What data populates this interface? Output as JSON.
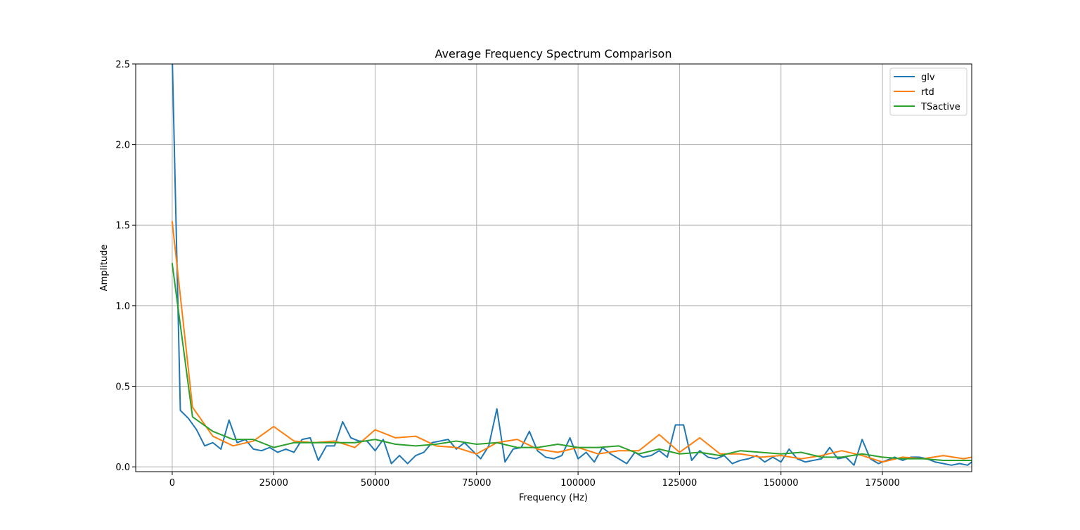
{
  "chart_data": {
    "type": "line",
    "title": "Average Frequency Spectrum Comparison",
    "xlabel": "Frequency (Hz)",
    "ylabel": "Amplitude",
    "xlim": [
      -9000,
      197000
    ],
    "ylim": [
      -0.03,
      2.5
    ],
    "xticks": [
      0,
      25000,
      50000,
      75000,
      100000,
      125000,
      150000,
      175000
    ],
    "yticks": [
      0.0,
      0.5,
      1.0,
      1.5,
      2.0,
      2.5
    ],
    "xtick_labels": [
      "0",
      "25000",
      "50000",
      "75000",
      "100000",
      "125000",
      "150000",
      "175000"
    ],
    "ytick_labels": [
      "0.0",
      "0.5",
      "1.0",
      "1.5",
      "2.0",
      "2.5"
    ],
    "grid": true,
    "legend_position": "top-right",
    "series": [
      {
        "name": "glv",
        "color": "#1f77b4",
        "x": [
          0,
          2000,
          4000,
          6000,
          8000,
          10000,
          12000,
          14000,
          16000,
          18000,
          20000,
          22000,
          24000,
          26000,
          28000,
          30000,
          32000,
          34000,
          36000,
          38000,
          40000,
          42000,
          44000,
          46000,
          48000,
          50000,
          52000,
          54000,
          56000,
          58000,
          60000,
          62000,
          64000,
          66000,
          68000,
          70000,
          72000,
          74000,
          76000,
          78000,
          80000,
          82000,
          84000,
          86000,
          88000,
          90000,
          92000,
          94000,
          96000,
          98000,
          100000,
          102000,
          104000,
          106000,
          108000,
          110000,
          112000,
          114000,
          116000,
          118000,
          120000,
          122000,
          124000,
          126000,
          128000,
          130000,
          132000,
          134000,
          136000,
          138000,
          140000,
          142000,
          144000,
          146000,
          148000,
          150000,
          152000,
          154000,
          156000,
          158000,
          160000,
          162000,
          164000,
          166000,
          168000,
          170000,
          172000,
          174000,
          176000,
          178000,
          180000,
          182000,
          184000,
          186000,
          188000,
          190000,
          192000,
          194000,
          196000,
          197000
        ],
        "y": [
          2.55,
          0.35,
          0.3,
          0.23,
          0.13,
          0.15,
          0.11,
          0.29,
          0.15,
          0.17,
          0.11,
          0.1,
          0.12,
          0.09,
          0.11,
          0.09,
          0.17,
          0.18,
          0.04,
          0.13,
          0.13,
          0.28,
          0.18,
          0.16,
          0.16,
          0.1,
          0.17,
          0.02,
          0.07,
          0.02,
          0.07,
          0.09,
          0.15,
          0.16,
          0.17,
          0.11,
          0.15,
          0.1,
          0.05,
          0.13,
          0.36,
          0.03,
          0.11,
          0.12,
          0.22,
          0.1,
          0.06,
          0.05,
          0.07,
          0.18,
          0.05,
          0.09,
          0.03,
          0.12,
          0.08,
          0.05,
          0.02,
          0.09,
          0.06,
          0.07,
          0.1,
          0.06,
          0.26,
          0.26,
          0.04,
          0.1,
          0.06,
          0.05,
          0.07,
          0.02,
          0.04,
          0.05,
          0.07,
          0.03,
          0.06,
          0.03,
          0.11,
          0.05,
          0.03,
          0.04,
          0.05,
          0.12,
          0.05,
          0.06,
          0.01,
          0.17,
          0.05,
          0.02,
          0.04,
          0.06,
          0.04,
          0.06,
          0.06,
          0.05,
          0.03,
          0.02,
          0.01,
          0.02,
          0.01,
          0.03
        ]
      },
      {
        "name": "rtd",
        "color": "#ff7f0e",
        "x": [
          0,
          5000,
          10000,
          15000,
          20000,
          25000,
          30000,
          35000,
          40000,
          45000,
          50000,
          55000,
          60000,
          65000,
          70000,
          75000,
          80000,
          85000,
          90000,
          95000,
          100000,
          105000,
          110000,
          115000,
          120000,
          125000,
          130000,
          135000,
          140000,
          145000,
          150000,
          155000,
          160000,
          165000,
          170000,
          175000,
          180000,
          185000,
          190000,
          195000,
          197000
        ],
        "y": [
          1.52,
          0.37,
          0.19,
          0.13,
          0.16,
          0.25,
          0.16,
          0.15,
          0.16,
          0.12,
          0.23,
          0.18,
          0.19,
          0.13,
          0.12,
          0.08,
          0.15,
          0.17,
          0.11,
          0.09,
          0.12,
          0.08,
          0.1,
          0.1,
          0.2,
          0.09,
          0.18,
          0.08,
          0.08,
          0.06,
          0.07,
          0.05,
          0.07,
          0.1,
          0.07,
          0.03,
          0.06,
          0.05,
          0.07,
          0.05,
          0.06
        ]
      },
      {
        "name": "TSactive",
        "color": "#2ca02c",
        "x": [
          0,
          5000,
          10000,
          15000,
          20000,
          25000,
          30000,
          35000,
          40000,
          45000,
          50000,
          55000,
          60000,
          65000,
          70000,
          75000,
          80000,
          85000,
          90000,
          95000,
          100000,
          105000,
          110000,
          115000,
          120000,
          125000,
          130000,
          135000,
          140000,
          145000,
          150000,
          155000,
          160000,
          165000,
          170000,
          175000,
          180000,
          185000,
          190000,
          195000,
          197000
        ],
        "y": [
          1.26,
          0.31,
          0.22,
          0.17,
          0.17,
          0.12,
          0.15,
          0.15,
          0.15,
          0.15,
          0.17,
          0.14,
          0.13,
          0.14,
          0.16,
          0.14,
          0.15,
          0.12,
          0.12,
          0.14,
          0.12,
          0.12,
          0.13,
          0.08,
          0.11,
          0.08,
          0.09,
          0.07,
          0.1,
          0.09,
          0.08,
          0.09,
          0.06,
          0.06,
          0.08,
          0.06,
          0.05,
          0.05,
          0.04,
          0.04,
          0.04
        ]
      }
    ]
  }
}
